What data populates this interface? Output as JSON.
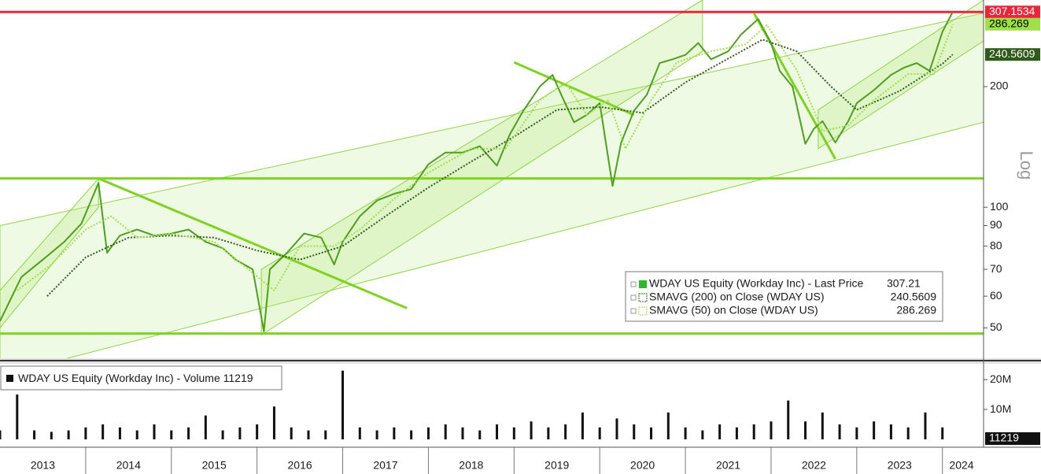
{
  "chart_data": {
    "type": "line",
    "log_scale": true,
    "y_axis_title": "Log",
    "xlim": [
      2013.0,
      2024.48
    ],
    "xticks": [
      2013,
      2014,
      2015,
      2016,
      2017,
      2018,
      2019,
      2020,
      2021,
      2022,
      2023,
      2024
    ],
    "ylim": [
      42,
      329
    ],
    "yticks": [
      50,
      60,
      70,
      80,
      90,
      100,
      200
    ],
    "series": [
      {
        "name": "WDAY US Equity (Workday Inc) - Last Price",
        "last_value": 307.21,
        "color": "#4f9f1f",
        "x": [
          2013.0,
          2013.25,
          2013.5,
          2013.75,
          2013.95,
          2014.15,
          2014.25,
          2014.4,
          2014.6,
          2014.8,
          2015.0,
          2015.2,
          2015.4,
          2015.6,
          2015.75,
          2015.95,
          2016.08,
          2016.15,
          2016.35,
          2016.55,
          2016.75,
          2016.9,
          2017.0,
          2017.2,
          2017.4,
          2017.6,
          2017.8,
          2018.0,
          2018.2,
          2018.4,
          2018.6,
          2018.8,
          2018.95,
          2019.1,
          2019.3,
          2019.45,
          2019.55,
          2019.7,
          2019.85,
          2020.0,
          2020.15,
          2020.25,
          2020.4,
          2020.55,
          2020.7,
          2020.85,
          2021.0,
          2021.15,
          2021.3,
          2021.5,
          2021.65,
          2021.85,
          2022.0,
          2022.1,
          2022.25,
          2022.4,
          2022.5,
          2022.6,
          2022.75,
          2022.9,
          2023.0,
          2023.2,
          2023.4,
          2023.55,
          2023.7,
          2023.85,
          2024.0,
          2024.12
        ],
        "values": [
          52,
          67,
          74,
          82,
          91,
          115,
          77,
          85,
          88,
          85,
          86,
          88,
          82,
          79,
          74,
          70,
          49,
          70,
          77,
          86,
          84,
          72,
          82,
          95,
          104,
          108,
          111,
          128,
          137,
          137,
          142,
          127,
          152,
          173,
          200,
          214,
          191,
          163,
          170,
          182,
          113,
          145,
          174,
          191,
          229,
          234,
          240,
          257,
          234,
          245,
          270,
          295,
          257,
          219,
          200,
          144,
          157,
          164,
          145,
          164,
          182,
          196,
          214,
          223,
          229,
          219,
          274,
          307.2
        ]
      },
      {
        "name": "SMAVG (200)  on Close (WDAY US)",
        "last_value": 240.5609,
        "color": "#2f5a1c",
        "price_tag": true,
        "x": [
          2013.55,
          2014.0,
          2014.5,
          2015.0,
          2015.5,
          2016.0,
          2016.5,
          2017.0,
          2017.5,
          2018.0,
          2018.5,
          2019.0,
          2019.5,
          2020.0,
          2020.5,
          2021.0,
          2021.5,
          2021.9,
          2022.3,
          2022.7,
          2023.0,
          2023.5,
          2024.0,
          2024.12
        ],
        "values": [
          60,
          75,
          84,
          85,
          84,
          78,
          74,
          80,
          95,
          112,
          130,
          150,
          175,
          178,
          172,
          205,
          235,
          262,
          245,
          200,
          175,
          195,
          228,
          240.5609
        ]
      },
      {
        "name": "SMAVG (50)  on Close (WDAY US)",
        "last_value": 286.269,
        "color": "#9fe04a",
        "price_tag": true,
        "x": [
          2013.2,
          2013.6,
          2014.0,
          2014.3,
          2014.6,
          2015.0,
          2015.5,
          2015.9,
          2016.2,
          2016.5,
          2016.9,
          2017.2,
          2017.6,
          2018.0,
          2018.5,
          2018.9,
          2019.3,
          2019.6,
          2019.85,
          2020.1,
          2020.3,
          2020.6,
          2020.9,
          2021.3,
          2021.7,
          2021.95,
          2022.3,
          2022.6,
          2022.9,
          2023.2,
          2023.6,
          2023.9,
          2024.12
        ],
        "values": [
          62,
          72,
          88,
          95,
          84,
          86,
          82,
          70,
          62,
          80,
          80,
          88,
          105,
          122,
          140,
          140,
          185,
          205,
          170,
          185,
          140,
          185,
          230,
          245,
          255,
          285,
          220,
          155,
          160,
          185,
          215,
          215,
          286.269
        ]
      }
    ],
    "levels": [
      {
        "value": 307.1534,
        "color": "#e8283a",
        "price_tag": true
      },
      {
        "value": 118,
        "color": "#7ed321"
      },
      {
        "value": 48.4,
        "color": "#7ed321"
      }
    ],
    "channels": [
      {
        "x": [
          2013.0,
          2024.48
        ],
        "lower": [
          38,
          163
        ],
        "upper": [
          90,
          305
        ]
      },
      {
        "x": [
          2013.0,
          2014.15
        ],
        "lower": [
          50,
          100
        ],
        "upper": [
          62,
          118
        ]
      },
      {
        "x": [
          2016.05,
          2021.2
        ],
        "lower": [
          48,
          245
        ],
        "upper": [
          70,
          329
        ]
      },
      {
        "x": [
          2022.55,
          2024.48
        ],
        "lower": [
          140,
          260
        ],
        "upper": [
          175,
          329
        ]
      }
    ],
    "trendlines": [
      {
        "x": [
          2014.15,
          2017.75
        ],
        "y": [
          118,
          56
        ]
      },
      {
        "x": [
          2019.0,
          2020.4
        ],
        "y": [
          230,
          170
        ]
      },
      {
        "x": [
          2021.8,
          2022.75
        ],
        "y": [
          305,
          132
        ]
      }
    ],
    "volume": {
      "name": "WDAY US Equity (Workday Inc) - Volume",
      "last_value": 11219,
      "color": "#111111",
      "ylim": [
        0,
        25300000
      ],
      "yticks": [
        {
          "value": 10000000,
          "label": "10M"
        },
        {
          "value": 20000000,
          "label": "20M"
        }
      ],
      "x": [
        2013.0,
        2013.2,
        2013.4,
        2013.6,
        2013.8,
        2014.0,
        2014.2,
        2014.4,
        2014.6,
        2014.8,
        2015.0,
        2015.2,
        2015.4,
        2015.6,
        2015.8,
        2016.0,
        2016.2,
        2016.4,
        2016.6,
        2016.8,
        2017.0,
        2017.2,
        2017.4,
        2017.6,
        2017.8,
        2018.0,
        2018.2,
        2018.4,
        2018.6,
        2018.8,
        2019.0,
        2019.2,
        2019.4,
        2019.6,
        2019.8,
        2020.0,
        2020.2,
        2020.4,
        2020.6,
        2020.8,
        2021.0,
        2021.2,
        2021.4,
        2021.6,
        2021.8,
        2022.0,
        2022.2,
        2022.4,
        2022.6,
        2022.8,
        2023.0,
        2023.2,
        2023.4,
        2023.6,
        2023.8,
        2024.0
      ],
      "values": [
        3000000,
        15000000,
        3000000,
        2500000,
        3000000,
        4000000,
        5000000,
        4000000,
        3000000,
        5000000,
        3000000,
        4000000,
        8000000,
        3000000,
        4000000,
        5000000,
        11000000,
        4000000,
        3000000,
        3000000,
        23000000,
        4000000,
        3000000,
        4000000,
        3000000,
        4000000,
        5000000,
        4000000,
        3000000,
        5000000,
        4000000,
        6000000,
        4000000,
        5000000,
        9000000,
        4000000,
        7000000,
        5000000,
        4000000,
        9000000,
        4000000,
        3000000,
        5000000,
        4000000,
        5000000,
        6000000,
        13000000,
        6000000,
        9000000,
        5000000,
        4000000,
        6000000,
        5000000,
        4000000,
        9000000,
        4000000
      ]
    }
  }
}
